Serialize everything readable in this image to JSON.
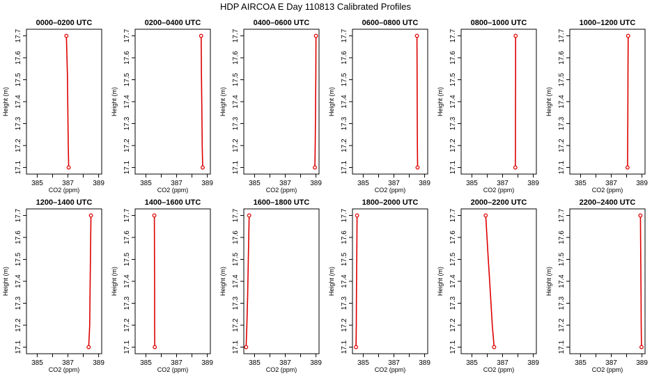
{
  "figure": {
    "title": "HDP AIRCOA E  Day 110813  Calibrated Profiles"
  },
  "colors": {
    "series": "#dd0000",
    "axes": "#000000"
  },
  "chart_data": [
    {
      "type": "line",
      "title": "0000–0200 UTC",
      "xlabel": "CO2 (ppm)",
      "ylabel": "Height (m)",
      "xlim": [
        384.3,
        389.2
      ],
      "ylim": [
        17.07,
        17.73
      ],
      "xticks": [
        "385",
        "",
        "387",
        "",
        "389"
      ],
      "yticks": [
        "17.1",
        "17.2",
        "17.3",
        "17.4",
        "17.5",
        "17.6",
        "17.7"
      ],
      "series": [
        {
          "x": [
            386.9,
            386.97,
            387.0,
            387.02,
            387.05
          ],
          "y": [
            17.7,
            17.52,
            17.33,
            17.2,
            17.1
          ]
        }
      ]
    },
    {
      "type": "line",
      "title": "0200–0400 UTC",
      "xlabel": "CO2 (ppm)",
      "ylabel": "Height (m)",
      "xlim": [
        384.3,
        389.2
      ],
      "ylim": [
        17.07,
        17.73
      ],
      "xticks": [
        "385",
        "",
        "387",
        "",
        "389"
      ],
      "yticks": [
        "17.1",
        "17.2",
        "17.3",
        "17.4",
        "17.5",
        "17.6",
        "17.7"
      ],
      "series": [
        {
          "x": [
            388.6,
            388.62,
            388.65,
            388.67,
            388.7
          ],
          "y": [
            17.7,
            17.52,
            17.33,
            17.2,
            17.1
          ]
        }
      ]
    },
    {
      "type": "line",
      "title": "0400–0600 UTC",
      "xlabel": "CO2 (ppm)",
      "ylabel": "Height (m)",
      "xlim": [
        384.3,
        389.2
      ],
      "ylim": [
        17.07,
        17.73
      ],
      "xticks": [
        "385",
        "",
        "387",
        "",
        "389"
      ],
      "yticks": [
        "17.1",
        "17.2",
        "17.3",
        "17.4",
        "17.5",
        "17.6",
        "17.7"
      ],
      "series": [
        {
          "x": [
            389.0,
            388.99,
            388.97,
            388.95,
            388.93
          ],
          "y": [
            17.7,
            17.52,
            17.33,
            17.2,
            17.1
          ]
        }
      ]
    },
    {
      "type": "line",
      "title": "0600–0800 UTC",
      "xlabel": "CO2 (ppm)",
      "ylabel": "Height (m)",
      "xlim": [
        384.3,
        389.2
      ],
      "ylim": [
        17.07,
        17.73
      ],
      "xticks": [
        "385",
        "",
        "387",
        "",
        "389"
      ],
      "yticks": [
        "17.1",
        "17.2",
        "17.3",
        "17.4",
        "17.5",
        "17.6",
        "17.7"
      ],
      "series": [
        {
          "x": [
            388.5,
            388.51,
            388.52,
            388.53,
            388.54
          ],
          "y": [
            17.7,
            17.52,
            17.33,
            17.2,
            17.1
          ]
        }
      ]
    },
    {
      "type": "line",
      "title": "0800–1000 UTC",
      "xlabel": "CO2 (ppm)",
      "ylabel": "Height (m)",
      "xlim": [
        384.3,
        389.2
      ],
      "ylim": [
        17.07,
        17.73
      ],
      "xticks": [
        "385",
        "",
        "387",
        "",
        "389"
      ],
      "yticks": [
        "17.1",
        "17.2",
        "17.3",
        "17.4",
        "17.5",
        "17.6",
        "17.7"
      ],
      "series": [
        {
          "x": [
            387.85,
            387.85,
            387.84,
            387.84,
            387.83
          ],
          "y": [
            17.7,
            17.52,
            17.33,
            17.2,
            17.1
          ]
        }
      ]
    },
    {
      "type": "line",
      "title": "1000–1200 UTC",
      "xlabel": "CO2 (ppm)",
      "ylabel": "Height (m)",
      "xlim": [
        384.3,
        389.2
      ],
      "ylim": [
        17.07,
        17.73
      ],
      "xticks": [
        "385",
        "",
        "387",
        "",
        "389"
      ],
      "yticks": [
        "17.1",
        "17.2",
        "17.3",
        "17.4",
        "17.5",
        "17.6",
        "17.7"
      ],
      "series": [
        {
          "x": [
            388.1,
            388.09,
            388.08,
            388.07,
            388.06
          ],
          "y": [
            17.7,
            17.52,
            17.33,
            17.2,
            17.1
          ]
        }
      ]
    },
    {
      "type": "line",
      "title": "1200–1400 UTC",
      "xlabel": "CO2 (ppm)",
      "ylabel": "Height (m)",
      "xlim": [
        384.3,
        389.2
      ],
      "ylim": [
        17.07,
        17.73
      ],
      "xticks": [
        "385",
        "",
        "387",
        "",
        "389"
      ],
      "yticks": [
        "17.1",
        "17.2",
        "17.3",
        "17.4",
        "17.5",
        "17.6",
        "17.7"
      ],
      "series": [
        {
          "x": [
            388.5,
            388.47,
            388.44,
            388.42,
            388.35
          ],
          "y": [
            17.7,
            17.52,
            17.33,
            17.2,
            17.1
          ]
        }
      ]
    },
    {
      "type": "line",
      "title": "1400–1600 UTC",
      "xlabel": "CO2 (ppm)",
      "ylabel": "Height (m)",
      "xlim": [
        384.3,
        389.2
      ],
      "ylim": [
        17.07,
        17.73
      ],
      "xticks": [
        "385",
        "",
        "387",
        "",
        "389"
      ],
      "yticks": [
        "17.1",
        "17.2",
        "17.3",
        "17.4",
        "17.5",
        "17.6",
        "17.7"
      ],
      "series": [
        {
          "x": [
            385.55,
            385.56,
            385.57,
            385.57,
            385.58
          ],
          "y": [
            17.7,
            17.52,
            17.33,
            17.2,
            17.1
          ]
        }
      ]
    },
    {
      "type": "line",
      "title": "1600–1800 UTC",
      "xlabel": "CO2 (ppm)",
      "ylabel": "Height (m)",
      "xlim": [
        384.3,
        389.2
      ],
      "ylim": [
        17.07,
        17.73
      ],
      "xticks": [
        "385",
        "",
        "387",
        "",
        "389"
      ],
      "yticks": [
        "17.1",
        "17.2",
        "17.3",
        "17.4",
        "17.5",
        "17.6",
        "17.7"
      ],
      "series": [
        {
          "x": [
            384.65,
            384.6,
            384.55,
            384.5,
            384.45
          ],
          "y": [
            17.7,
            17.52,
            17.33,
            17.2,
            17.1
          ]
        }
      ]
    },
    {
      "type": "line",
      "title": "1800–2000 UTC",
      "xlabel": "CO2 (ppm)",
      "ylabel": "Height (m)",
      "xlim": [
        384.3,
        389.2
      ],
      "ylim": [
        17.07,
        17.73
      ],
      "xticks": [
        "385",
        "",
        "387",
        "",
        "389"
      ],
      "yticks": [
        "17.1",
        "17.2",
        "17.3",
        "17.4",
        "17.5",
        "17.6",
        "17.7"
      ],
      "series": [
        {
          "x": [
            384.6,
            384.58,
            384.56,
            384.55,
            384.53
          ],
          "y": [
            17.7,
            17.52,
            17.33,
            17.2,
            17.1
          ]
        }
      ]
    },
    {
      "type": "line",
      "title": "2000–2200 UTC",
      "xlabel": "CO2 (ppm)",
      "ylabel": "Height (m)",
      "xlim": [
        384.3,
        389.2
      ],
      "ylim": [
        17.07,
        17.73
      ],
      "xticks": [
        "385",
        "",
        "387",
        "",
        "389"
      ],
      "yticks": [
        "17.1",
        "17.2",
        "17.3",
        "17.4",
        "17.5",
        "17.6",
        "17.7"
      ],
      "series": [
        {
          "x": [
            385.9,
            386.05,
            386.22,
            386.33,
            386.45
          ],
          "y": [
            17.7,
            17.52,
            17.33,
            17.2,
            17.1
          ]
        }
      ]
    },
    {
      "type": "line",
      "title": "2200–2400 UTC",
      "xlabel": "CO2 (ppm)",
      "ylabel": "Height (m)",
      "xlim": [
        384.3,
        389.2
      ],
      "ylim": [
        17.07,
        17.73
      ],
      "xticks": [
        "385",
        "",
        "387",
        "",
        "389"
      ],
      "yticks": [
        "17.1",
        "17.2",
        "17.3",
        "17.4",
        "17.5",
        "17.6",
        "17.7"
      ],
      "series": [
        {
          "x": [
            388.9,
            388.92,
            388.94,
            388.95,
            388.97
          ],
          "y": [
            17.7,
            17.52,
            17.33,
            17.2,
            17.1
          ]
        }
      ]
    }
  ]
}
